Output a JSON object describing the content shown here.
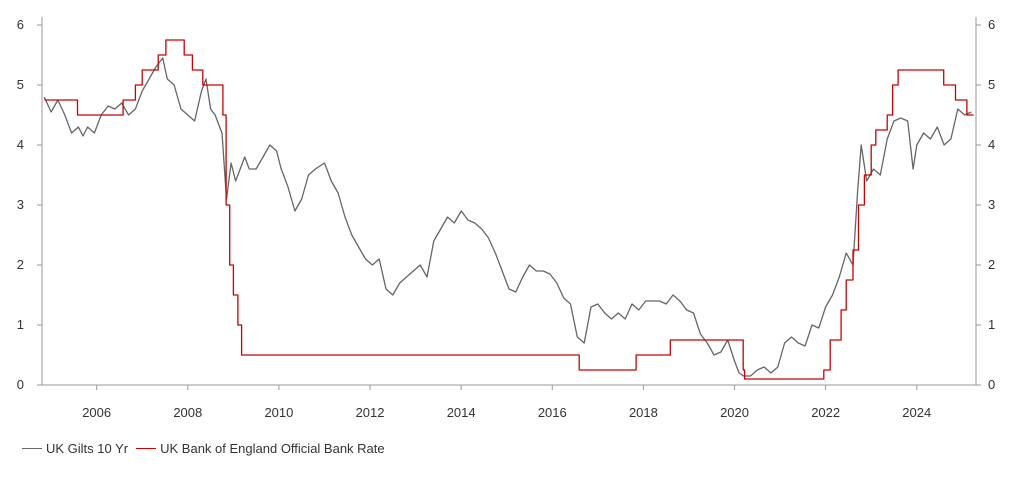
{
  "chart_data": {
    "type": "line",
    "title": "",
    "xlabel": "",
    "ylabel": "",
    "xlim": [
      2004.8,
      2025.3
    ],
    "ylim": [
      0,
      6
    ],
    "x_ticks": [
      2006,
      2008,
      2010,
      2012,
      2014,
      2016,
      2018,
      2020,
      2022,
      2024
    ],
    "x_tick_labels": [
      "2006",
      "2008",
      "2010",
      "2012",
      "2014",
      "2016",
      "2018",
      "2020",
      "2022",
      "2024"
    ],
    "y_ticks": [
      0,
      1,
      2,
      3,
      4,
      5,
      6
    ],
    "y_tick_labels": [
      "0",
      "1",
      "2",
      "3",
      "4",
      "5",
      "6"
    ],
    "grid": false,
    "legend_position": "bottom-left",
    "series": [
      {
        "name": "UK Gilts 10 Yr",
        "color": "#666666",
        "x": [
          2004.85,
          2005.0,
          2005.15,
          2005.3,
          2005.45,
          2005.6,
          2005.7,
          2005.8,
          2005.95,
          2006.1,
          2006.25,
          2006.4,
          2006.55,
          2006.7,
          2006.85,
          2007.0,
          2007.15,
          2007.3,
          2007.45,
          2007.55,
          2007.7,
          2007.85,
          2008.0,
          2008.15,
          2008.3,
          2008.4,
          2008.5,
          2008.6,
          2008.75,
          2008.85,
          2008.95,
          2009.05,
          2009.15,
          2009.25,
          2009.35,
          2009.5,
          2009.65,
          2009.8,
          2009.95,
          2010.05,
          2010.2,
          2010.35,
          2010.5,
          2010.65,
          2010.8,
          2011.0,
          2011.15,
          2011.3,
          2011.45,
          2011.6,
          2011.75,
          2011.9,
          2012.05,
          2012.2,
          2012.35,
          2012.5,
          2012.65,
          2012.8,
          2012.95,
          2013.1,
          2013.25,
          2013.4,
          2013.55,
          2013.7,
          2013.85,
          2014.0,
          2014.15,
          2014.3,
          2014.45,
          2014.6,
          2014.75,
          2014.9,
          2015.05,
          2015.2,
          2015.35,
          2015.5,
          2015.65,
          2015.8,
          2015.95,
          2016.1,
          2016.25,
          2016.4,
          2016.55,
          2016.7,
          2016.85,
          2017.0,
          2017.15,
          2017.3,
          2017.45,
          2017.6,
          2017.75,
          2017.9,
          2018.05,
          2018.2,
          2018.35,
          2018.5,
          2018.65,
          2018.8,
          2018.95,
          2019.1,
          2019.25,
          2019.4,
          2019.55,
          2019.7,
          2019.85,
          2020.0,
          2020.1,
          2020.2,
          2020.35,
          2020.5,
          2020.65,
          2020.8,
          2020.95,
          2021.1,
          2021.25,
          2021.4,
          2021.55,
          2021.7,
          2021.85,
          2022.0,
          2022.15,
          2022.3,
          2022.45,
          2022.6,
          2022.7,
          2022.78,
          2022.9,
          2023.05,
          2023.2,
          2023.35,
          2023.5,
          2023.65,
          2023.8,
          2023.92,
          2024.0,
          2024.15,
          2024.3,
          2024.45,
          2024.6,
          2024.75,
          2024.9,
          2025.05,
          2025.2
        ],
        "y": [
          4.8,
          4.55,
          4.75,
          4.5,
          4.2,
          4.3,
          4.15,
          4.3,
          4.2,
          4.5,
          4.65,
          4.6,
          4.7,
          4.5,
          4.6,
          4.9,
          5.1,
          5.3,
          5.45,
          5.1,
          5.0,
          4.6,
          4.5,
          4.4,
          4.9,
          5.1,
          4.6,
          4.5,
          4.2,
          3.1,
          3.7,
          3.4,
          3.6,
          3.8,
          3.6,
          3.6,
          3.8,
          4.0,
          3.9,
          3.6,
          3.3,
          2.9,
          3.1,
          3.5,
          3.6,
          3.7,
          3.4,
          3.2,
          2.8,
          2.5,
          2.3,
          2.1,
          2.0,
          2.1,
          1.6,
          1.5,
          1.7,
          1.8,
          1.9,
          2.0,
          1.8,
          2.4,
          2.6,
          2.8,
          2.7,
          2.9,
          2.75,
          2.7,
          2.6,
          2.45,
          2.2,
          1.9,
          1.6,
          1.55,
          1.8,
          2.0,
          1.9,
          1.9,
          1.85,
          1.7,
          1.45,
          1.35,
          0.8,
          0.7,
          1.3,
          1.35,
          1.2,
          1.1,
          1.2,
          1.1,
          1.35,
          1.25,
          1.4,
          1.4,
          1.4,
          1.35,
          1.5,
          1.4,
          1.25,
          1.2,
          0.85,
          0.7,
          0.5,
          0.55,
          0.75,
          0.4,
          0.2,
          0.15,
          0.15,
          0.25,
          0.3,
          0.2,
          0.3,
          0.7,
          0.8,
          0.7,
          0.65,
          1.0,
          0.95,
          1.3,
          1.5,
          1.8,
          2.2,
          2.0,
          3.2,
          4.0,
          3.4,
          3.6,
          3.5,
          4.1,
          4.4,
          4.45,
          4.4,
          3.6,
          4.0,
          4.2,
          4.1,
          4.3,
          4.0,
          4.1,
          4.6,
          4.5,
          4.55
        ]
      },
      {
        "name": "UK Bank of England Official Bank Rate",
        "color": "#cc0000",
        "x": [
          2004.85,
          2005.58,
          2005.58,
          2006.58,
          2006.58,
          2006.85,
          2006.85,
          2007.0,
          2007.0,
          2007.35,
          2007.35,
          2007.52,
          2007.52,
          2007.92,
          2007.92,
          2008.1,
          2008.1,
          2008.33,
          2008.33,
          2008.77,
          2008.77,
          2008.84,
          2008.84,
          2008.92,
          2008.92,
          2009.0,
          2009.0,
          2009.1,
          2009.1,
          2009.18,
          2009.18,
          2016.59,
          2016.59,
          2017.84,
          2017.84,
          2018.59,
          2018.59,
          2020.19,
          2020.19,
          2020.22,
          2020.22,
          2021.96,
          2021.96,
          2022.1,
          2022.1,
          2022.34,
          2022.34,
          2022.45,
          2022.45,
          2022.6,
          2022.6,
          2022.72,
          2022.72,
          2022.85,
          2022.85,
          2023.0,
          2023.0,
          2023.1,
          2023.1,
          2023.35,
          2023.35,
          2023.47,
          2023.47,
          2023.59,
          2023.59,
          2024.59,
          2024.59,
          2024.85,
          2024.85,
          2025.1,
          2025.1,
          2025.25
        ],
        "y": [
          4.75,
          4.75,
          4.5,
          4.5,
          4.75,
          4.75,
          5.0,
          5.0,
          5.25,
          5.25,
          5.5,
          5.5,
          5.75,
          5.75,
          5.5,
          5.5,
          5.25,
          5.25,
          5.0,
          5.0,
          4.5,
          4.5,
          3.0,
          3.0,
          2.0,
          2.0,
          1.5,
          1.5,
          1.0,
          1.0,
          0.5,
          0.5,
          0.25,
          0.25,
          0.5,
          0.5,
          0.75,
          0.75,
          0.25,
          0.25,
          0.1,
          0.1,
          0.25,
          0.25,
          0.75,
          0.75,
          1.25,
          1.25,
          1.75,
          1.75,
          2.25,
          2.25,
          3.0,
          3.0,
          3.5,
          3.5,
          4.0,
          4.0,
          4.25,
          4.25,
          4.5,
          4.5,
          5.0,
          5.0,
          5.25,
          5.25,
          5.0,
          5.0,
          4.75,
          4.75,
          4.5,
          4.5
        ]
      }
    ]
  },
  "legend": {
    "items": [
      {
        "label": "UK Gilts 10 Yr",
        "color": "#666666"
      },
      {
        "label": "UK Bank of England Official Bank Rate",
        "color": "#cc0000"
      }
    ]
  },
  "axis_color": "#999999"
}
